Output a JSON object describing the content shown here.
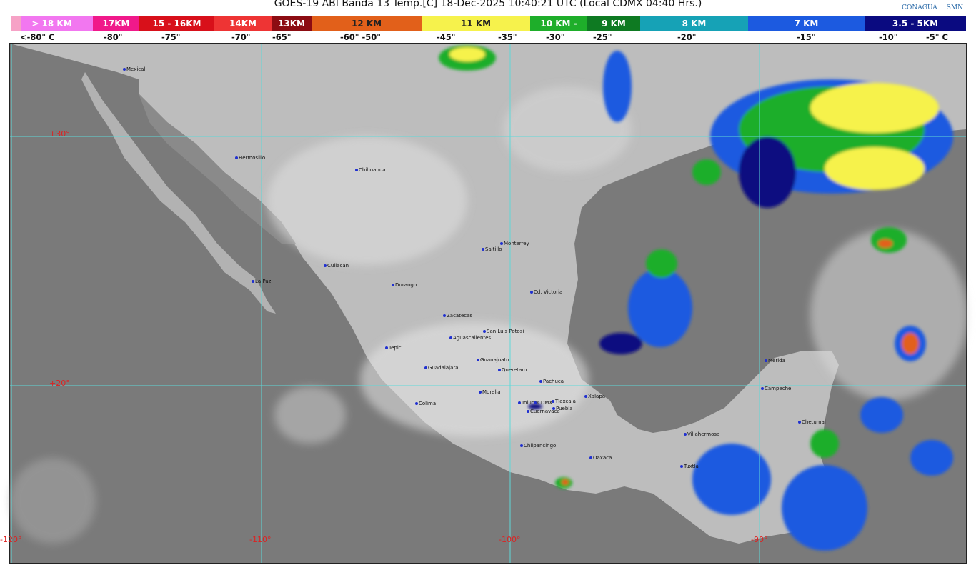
{
  "header": {
    "title": "GOES-19 ABI Banda 13 Temp.[C] 18-Dec-2025 10:40:21 UTC (Local CDMX  04:40 Hrs.)",
    "logos": [
      "CONAGUA",
      "SMN"
    ]
  },
  "legend": {
    "bands": [
      {
        "label": "> 18 KM",
        "color": "#f277f0"
      },
      {
        "label": "17KM",
        "color": "#f0198a"
      },
      {
        "label": "15 - 16KM",
        "color": "#d8101a"
      },
      {
        "label": "14KM",
        "color": "#ee3434"
      },
      {
        "label": "13KM",
        "color": "#8c0c12"
      },
      {
        "label": "12 KM",
        "color": "#e2601a"
      },
      {
        "label": "11 KM",
        "color": "#f6f24c"
      },
      {
        "label": "10 KM -",
        "color": "#1eae2a"
      },
      {
        "label": "9 KM",
        "color": "#0e7a22"
      },
      {
        "label": "8 KM",
        "color": "#16a2b6"
      },
      {
        "label": "7 KM",
        "color": "#1c5ae0"
      },
      {
        "label": "3.5 - 5KM",
        "color": "#0a0a80"
      }
    ],
    "temps": [
      "<-80° C",
      "-80°",
      "-75°",
      "-70°",
      "-65°",
      "-60°  -50°",
      "-45°",
      "-35°",
      "-30°",
      "-25°",
      "-20°",
      "-15°",
      "-10°",
      "-5°  C"
    ]
  },
  "map": {
    "latitudes": [
      "+30°",
      "+20°"
    ],
    "longitudes": [
      "-120°",
      "-110°",
      "-100°",
      "-90°"
    ],
    "cities": [
      "Mexicali",
      "Hermosillo",
      "Chihuahua",
      "Culiacan",
      "La Paz",
      "Durango",
      "Saltillo",
      "Monterrey",
      "Cd. Victoria",
      "Zacatecas",
      "San Luis Potosi",
      "Aguascalientes",
      "Tepic",
      "Guadalajara",
      "Guanajuato",
      "Queretaro",
      "Pachuca",
      "Xalapa",
      "Morelia",
      "Colima",
      "Toluca",
      "CDMX",
      "Tlaxcala",
      "Cuernavaca",
      "Puebla",
      "Chilpancingo",
      "Oaxaca",
      "Villahermosa",
      "Tuxtla",
      "Merida",
      "Campeche",
      "Chetumal"
    ]
  }
}
